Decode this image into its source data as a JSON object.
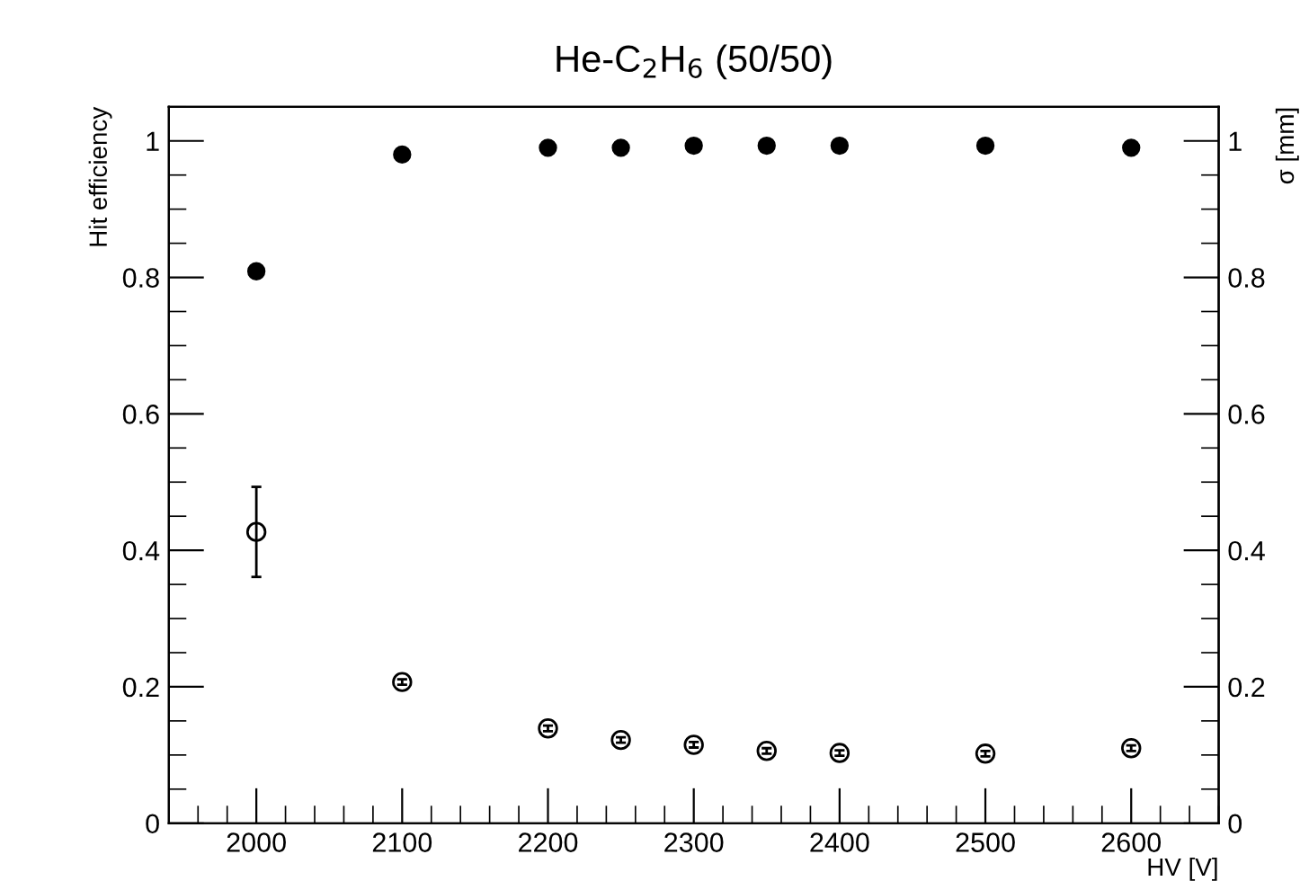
{
  "chart_data": {
    "type": "scatter",
    "title": "He-C$_{2}$H$_{6}$ (50/50)",
    "xlabel": "HV [V]",
    "ylabel": "Hit efficiency",
    "y2label": "σ [mm]",
    "x": [
      2000,
      2100,
      2200,
      2250,
      2300,
      2350,
      2400,
      2500,
      2600
    ],
    "series": [
      {
        "color": "#000000",
        "values": [
          0.809,
          0.98,
          0.99,
          0.99,
          0.993,
          0.993,
          0.993,
          0.993,
          0.99
        ]
      },
      {
        "color": "#000000",
        "axis": "y2",
        "values": [
          0.427,
          0.207,
          0.139,
          0.122,
          0.115,
          0.106,
          0.103,
          0.102,
          0.11
        ],
        "errors": [
          0.066,
          0.004,
          0.004,
          0.004,
          0.004,
          0.004,
          0.004,
          0.004,
          0.004
        ]
      }
    ],
    "xlim": [
      1940,
      2660
    ],
    "xticks": [
      2000,
      2100,
      2200,
      2300,
      2400,
      2500,
      2600
    ],
    "ylim": [
      0,
      1.05
    ],
    "yticks": [
      0,
      0.2,
      0.4,
      0.6,
      0.8,
      1
    ],
    "y2lim": [
      0,
      1.05
    ],
    "y2ticks": [
      0,
      0.2,
      0.4,
      0.6,
      0.8,
      1
    ],
    "grid": false,
    "legend": false,
    "marker": "circle"
  }
}
